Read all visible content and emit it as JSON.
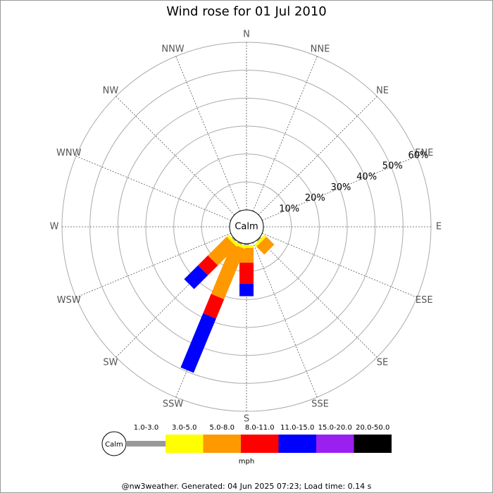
{
  "chart_data": {
    "type": "windrose",
    "title": "Wind rose for 01 Jul 2010",
    "categories": [
      "N",
      "NNE",
      "NE",
      "ENE",
      "E",
      "ESE",
      "SE",
      "SSE",
      "S",
      "SSW",
      "SW",
      "WSW",
      "W",
      "WNW",
      "NW",
      "NNW"
    ],
    "calm_label": "Calm",
    "unit": "mph",
    "footer": "@nw3weather. Generated: 04 Jun 2025 07:23; Load time: 0.14 s",
    "rlim": [
      0,
      60
    ],
    "rticks": [
      {
        "value": 10,
        "label": "10%"
      },
      {
        "value": 20,
        "label": "20%"
      },
      {
        "value": 30,
        "label": "30%"
      },
      {
        "value": 40,
        "label": "40%"
      },
      {
        "value": 50,
        "label": "50%"
      },
      {
        "value": 60,
        "label": "60%"
      }
    ],
    "series": [
      {
        "name": "1.0-3.0",
        "color": "#999999",
        "values": [
          0,
          0,
          0,
          0,
          0,
          0,
          0.5,
          0,
          0.5,
          0.5,
          0.5,
          0,
          0,
          0,
          0,
          0
        ]
      },
      {
        "name": "3.0-5.0",
        "color": "#ffff00",
        "values": [
          0,
          0,
          0,
          0,
          0,
          0,
          1,
          0,
          1,
          1,
          1,
          0,
          0,
          0,
          0,
          0
        ]
      },
      {
        "name": "5.0-8.0",
        "color": "#ff9900",
        "values": [
          0,
          0,
          0,
          0,
          0,
          0,
          4,
          0,
          5.3,
          19.5,
          9.5,
          0,
          0,
          0,
          0,
          0
        ]
      },
      {
        "name": "8.0-11.0",
        "color": "#ff0000",
        "values": [
          0,
          0,
          0,
          0,
          0,
          0,
          0,
          0,
          7.5,
          7.5,
          5,
          0,
          0,
          0,
          0,
          0
        ]
      },
      {
        "name": "11.0-15.0",
        "color": "#0000ff",
        "values": [
          0,
          0,
          0,
          0,
          0,
          0,
          0,
          0,
          4.5,
          21,
          7,
          0,
          0,
          0,
          0,
          0
        ]
      },
      {
        "name": "15.0-20.0",
        "color": "#9a1ff0",
        "values": [
          0,
          0,
          0,
          0,
          0,
          0,
          0,
          0,
          0,
          0,
          0,
          0,
          0,
          0,
          0,
          0
        ]
      },
      {
        "name": "20.0-50.0",
        "color": "#000000",
        "values": [
          0,
          0,
          0,
          0,
          0,
          0,
          0,
          0,
          0,
          0,
          0,
          0,
          0,
          0,
          0,
          0
        ]
      }
    ]
  }
}
